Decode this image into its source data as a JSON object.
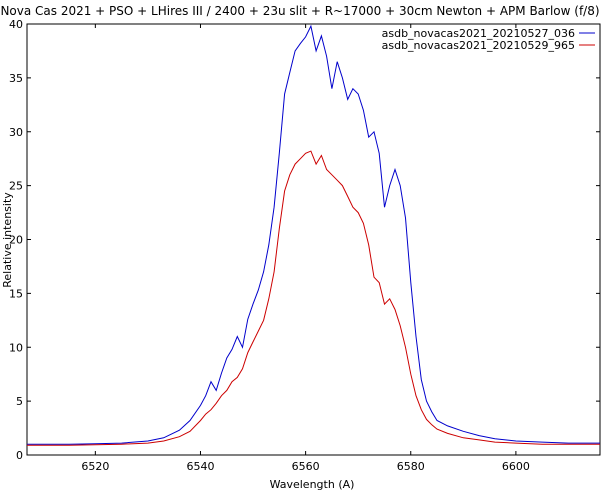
{
  "chart_data": {
    "type": "line",
    "title": "Nova Cas 2021 + PSO + LHires III / 2400 + 23u slit + R~17000 + 30cm Newton + APM Barlow (f/8)",
    "xlabel": "Wavelength (A)",
    "ylabel": "Relative intensity",
    "xlim": [
      6507,
      6616
    ],
    "ylim": [
      0,
      40
    ],
    "xticks": [
      6520,
      6540,
      6560,
      6580,
      6600
    ],
    "yticks": [
      0,
      5,
      10,
      15,
      20,
      25,
      30,
      35,
      40
    ],
    "grid": false,
    "legend_position": "top-right",
    "series": [
      {
        "name": "asdb_novacas2021_20210527_036",
        "color": "#0000cc",
        "x": [
          6507,
          6510,
          6515,
          6520,
          6525,
          6530,
          6533,
          6536,
          6538,
          6540,
          6541,
          6542,
          6543,
          6544,
          6545,
          6546,
          6547,
          6548,
          6549,
          6550,
          6551,
          6552,
          6553,
          6554,
          6555,
          6556,
          6557,
          6558,
          6559,
          6560,
          6561,
          6562,
          6563,
          6564,
          6565,
          6566,
          6567,
          6568,
          6569,
          6570,
          6571,
          6572,
          6573,
          6574,
          6575,
          6576,
          6577,
          6578,
          6579,
          6580,
          6581,
          6582,
          6583,
          6584,
          6585,
          6587,
          6590,
          6593,
          6596,
          6600,
          6605,
          6610,
          6616
        ],
        "values": [
          1.0,
          1.0,
          1.0,
          1.05,
          1.1,
          1.3,
          1.6,
          2.3,
          3.2,
          4.6,
          5.5,
          6.8,
          6.0,
          7.6,
          9.0,
          9.8,
          11.0,
          10.0,
          12.6,
          14.0,
          15.3,
          17.0,
          19.5,
          23.0,
          28.0,
          33.5,
          35.5,
          37.5,
          38.2,
          38.8,
          39.8,
          37.5,
          38.9,
          37.0,
          34.0,
          36.5,
          35.0,
          33.0,
          34.0,
          33.5,
          32.0,
          29.5,
          30.0,
          28.0,
          23.0,
          25.0,
          26.5,
          25.0,
          22.0,
          16.0,
          11.0,
          7.0,
          5.0,
          4.0,
          3.2,
          2.7,
          2.2,
          1.8,
          1.5,
          1.3,
          1.2,
          1.1,
          1.1
        ]
      },
      {
        "name": "asdb_novacas2021_20210529_965",
        "color": "#cc0000",
        "x": [
          6507,
          6510,
          6515,
          6520,
          6525,
          6530,
          6533,
          6536,
          6538,
          6540,
          6541,
          6542,
          6543,
          6544,
          6545,
          6546,
          6547,
          6548,
          6549,
          6550,
          6551,
          6552,
          6553,
          6554,
          6555,
          6556,
          6557,
          6558,
          6559,
          6560,
          6561,
          6562,
          6563,
          6564,
          6565,
          6566,
          6567,
          6568,
          6569,
          6570,
          6571,
          6572,
          6573,
          6574,
          6575,
          6576,
          6577,
          6578,
          6579,
          6580,
          6581,
          6582,
          6583,
          6584,
          6585,
          6587,
          6590,
          6593,
          6596,
          6600,
          6605,
          6610,
          6616
        ],
        "values": [
          0.9,
          0.9,
          0.9,
          0.95,
          1.0,
          1.1,
          1.3,
          1.7,
          2.2,
          3.2,
          3.8,
          4.2,
          4.8,
          5.5,
          6.0,
          6.8,
          7.2,
          8.0,
          9.5,
          10.5,
          11.5,
          12.5,
          14.5,
          17.0,
          21.0,
          24.5,
          26.0,
          27.0,
          27.5,
          28.0,
          28.2,
          27.0,
          27.8,
          26.5,
          26.0,
          25.5,
          25.0,
          24.0,
          23.0,
          22.5,
          21.5,
          19.5,
          16.5,
          16.0,
          14.0,
          14.5,
          13.5,
          12.0,
          10.0,
          7.5,
          5.5,
          4.2,
          3.3,
          2.8,
          2.4,
          2.0,
          1.6,
          1.4,
          1.2,
          1.1,
          1.0,
          1.0,
          1.0
        ]
      }
    ]
  }
}
